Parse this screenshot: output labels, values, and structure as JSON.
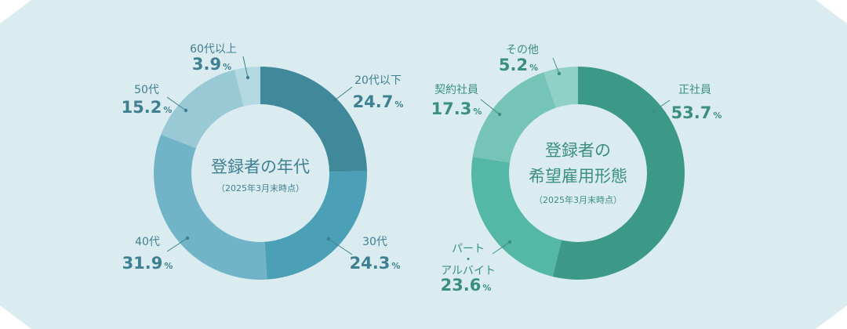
{
  "colors": {
    "background": "#dbecf0",
    "age_text": "#3f7f92",
    "emp_text": "#3b8f80",
    "hole": "#dbecf0"
  },
  "chart_data": [
    {
      "type": "pie",
      "title": "登録者の年代",
      "subtitle": "（2025年3月末時点）",
      "value_suffix": "%",
      "slices": [
        {
          "label": "20代以下",
          "value": 24.7,
          "color": "#40899b"
        },
        {
          "label": "30代",
          "value": 24.3,
          "color": "#4b9fb7"
        },
        {
          "label": "40代",
          "value": 31.9,
          "color": "#72b4c7"
        },
        {
          "label": "50代",
          "value": 15.2,
          "color": "#9ac9d6"
        },
        {
          "label": "60代以上",
          "value": 3.9,
          "color": "#b5d9e2"
        }
      ]
    },
    {
      "type": "pie",
      "title": "登録者の",
      "title_line2": "希望雇用形態",
      "subtitle": "（2025年3月末時点）",
      "value_suffix": "%",
      "slices": [
        {
          "label": "正社員",
          "value": 53.7,
          "color": "#3d9987"
        },
        {
          "label": "パート・アルバイト",
          "label_lines": [
            "パート",
            "・",
            "アルバイト"
          ],
          "value": 23.6,
          "color": "#55b7a5"
        },
        {
          "label": "契約社員",
          "value": 17.3,
          "color": "#76c4b7"
        },
        {
          "label": "その他",
          "value": 5.2,
          "color": "#90d0c6"
        }
      ]
    }
  ]
}
